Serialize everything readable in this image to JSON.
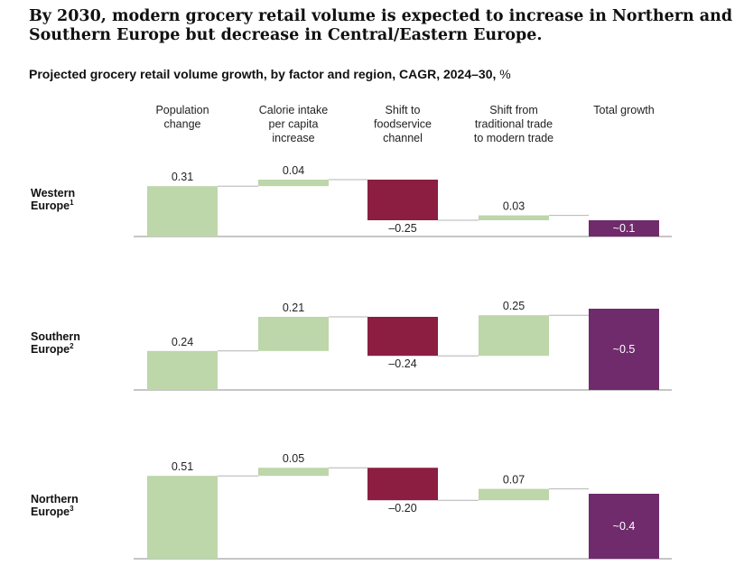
{
  "header": {
    "title": "By 2030, modern grocery retail volume is expected to increase in Northern and Southern Europe but decrease in Central/Eastern Europe.",
    "subtitle_bold": "Projected grocery retail volume growth, by factor and region, CAGR, 2024–30,",
    "subtitle_unit": "%"
  },
  "colors": {
    "positive": "#bdd6aa",
    "negative": "#8b1e41",
    "total": "#6f2b6c",
    "axis": "#8c8c8c",
    "connector": "#b4b4b4"
  },
  "chart_data": {
    "type": "waterfall",
    "categories": [
      "Population change",
      "Calorie intake per capita increase",
      "Shift to foodservice channel",
      "Shift from traditional trade to modern trade",
      "Total growth"
    ],
    "category_label_lines": [
      [
        "Population",
        "change"
      ],
      [
        "Calorie intake",
        "per capita",
        "increase"
      ],
      [
        "Shift to",
        "foodservice",
        "channel"
      ],
      [
        "Shift from",
        "traditional trade",
        "to modern trade"
      ],
      [
        "Total growth"
      ]
    ],
    "series": [
      {
        "name": "Western Europe",
        "label_lines": [
          "Western",
          "Europe"
        ],
        "footnote": "1",
        "values": [
          0.31,
          0.04,
          -0.25,
          0.03,
          0.1
        ],
        "labels": [
          "0.31",
          "0.04",
          "–0.25",
          "0.03",
          "~0.1"
        ]
      },
      {
        "name": "Southern Europe",
        "label_lines": [
          "Southern",
          "Europe"
        ],
        "footnote": "2",
        "values": [
          0.24,
          0.21,
          -0.24,
          0.25,
          0.5
        ],
        "labels": [
          "0.24",
          "0.21",
          "–0.24",
          "0.25",
          "~0.5"
        ]
      },
      {
        "name": "Northern Europe",
        "label_lines": [
          "Northern",
          "Europe"
        ],
        "footnote": "3",
        "values": [
          0.51,
          0.05,
          -0.2,
          0.07,
          0.4
        ],
        "labels": [
          "0.51",
          "0.05",
          "–0.20",
          "0.07",
          "~0.4"
        ]
      }
    ]
  }
}
